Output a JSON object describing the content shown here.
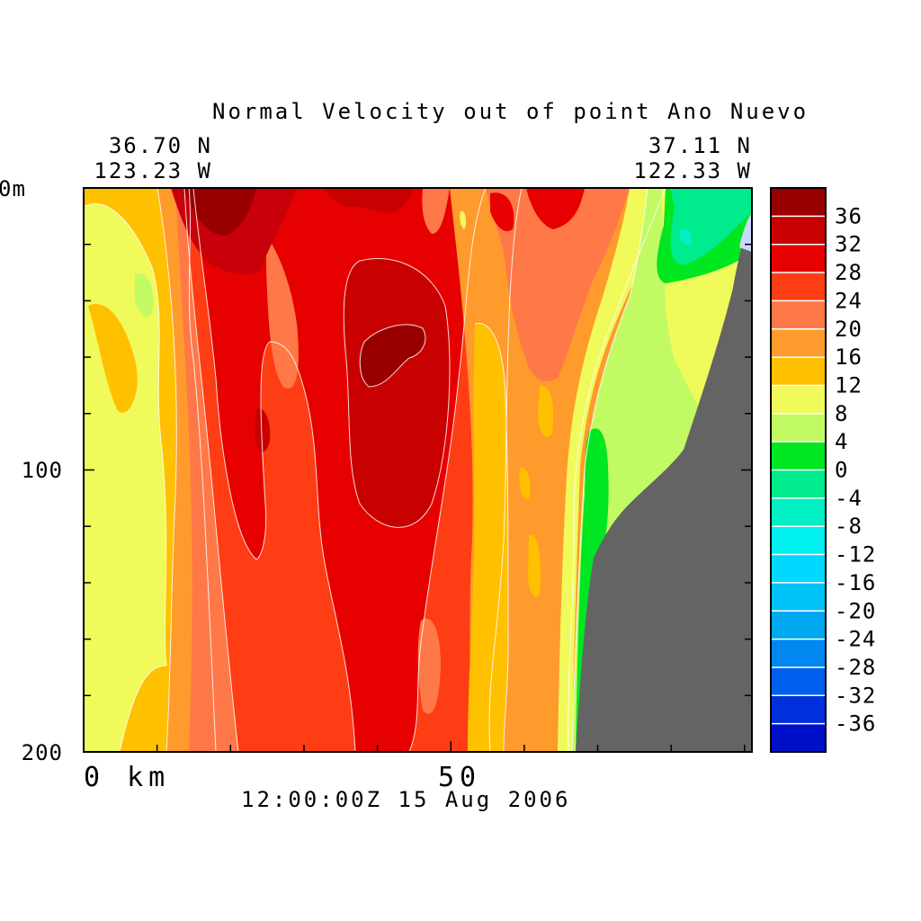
{
  "chart_data": {
    "type": "heatmap",
    "title": "Normal Velocity out of point Ano Nuevo",
    "start_lat": "36.70 N",
    "start_lon": "123.23 W",
    "end_lat": "37.11 N",
    "end_lon": "122.33 W",
    "y_top_label": "0m",
    "y_tick_labels": [
      "100",
      "200"
    ],
    "x_tick_labels": [
      "0 km",
      "50"
    ],
    "timestamp": "12:00:00Z  15 Aug 2006",
    "ylim": [
      0,
      200
    ],
    "y_inverted": true,
    "xlim": [
      0,
      91
    ],
    "colorbar": {
      "levels": [
        {
          "label": "36",
          "value": 36,
          "color": "#980000"
        },
        {
          "label": "32",
          "value": 32,
          "color": "#c80000"
        },
        {
          "label": "28",
          "value": 28,
          "color": "#e60000"
        },
        {
          "label": "24",
          "value": 24,
          "color": "#ff3d14"
        },
        {
          "label": "20",
          "value": 20,
          "color": "#ff7848"
        },
        {
          "label": "16",
          "value": 16,
          "color": "#ff9a2c"
        },
        {
          "label": "12",
          "value": 12,
          "color": "#ffc000"
        },
        {
          "label": "8",
          "value": 8,
          "color": "#f0fa5a"
        },
        {
          "label": "4",
          "value": 4,
          "color": "#c2fa64"
        },
        {
          "label": "0",
          "value": 0,
          "color": "#00e620"
        },
        {
          "label": "-4",
          "value": -4,
          "color": "#00eb8c"
        },
        {
          "label": "-8",
          "value": -8,
          "color": "#00f0c4"
        },
        {
          "label": "-12",
          "value": -12,
          "color": "#00f0f0"
        },
        {
          "label": "-16",
          "value": -16,
          "color": "#00d8ff"
        },
        {
          "label": "-20",
          "value": -20,
          "color": "#00c0f8"
        },
        {
          "label": "-24",
          "value": -24,
          "color": "#00a8f0"
        },
        {
          "label": "-28",
          "value": -28,
          "color": "#0088f0"
        },
        {
          "label": "-32",
          "value": -32,
          "color": "#0060ee"
        },
        {
          "label": "-36",
          "value": -36,
          "color": "#0030dc"
        },
        {
          "label": "",
          "value": -40,
          "color": "#0010c8"
        }
      ]
    },
    "land_color": "#646464"
  }
}
